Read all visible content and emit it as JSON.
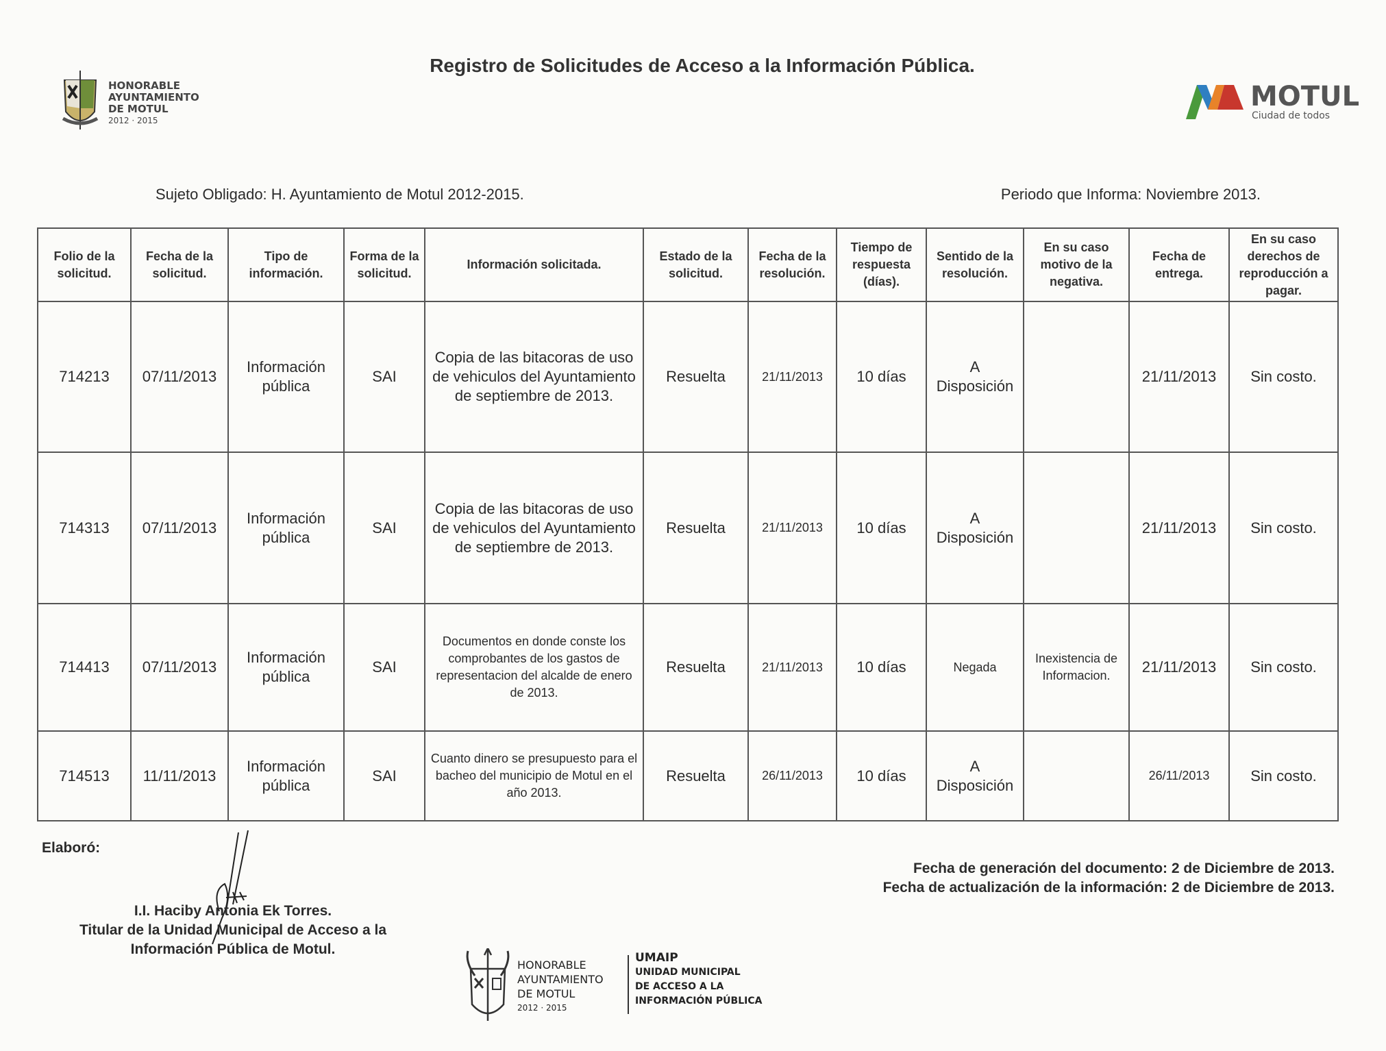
{
  "header": {
    "title": "Registro de Solicitudes de Acceso a la Información Pública.",
    "left_logo": {
      "lines": [
        "HONORABLE",
        "AYUNTAMIENTO",
        "DE MOTUL"
      ],
      "years": "2012 · 2015"
    },
    "right_logo": {
      "name": "MOTUL",
      "tagline": "Ciudad de todos",
      "colors": [
        "#4a9a3c",
        "#2f7fc1",
        "#e8832a",
        "#c8372d"
      ]
    }
  },
  "meta": {
    "subject": "Sujeto Obligado: H. Ayuntamiento de Motul 2012-2015.",
    "period": "Periodo que Informa: Noviembre 2013."
  },
  "table": {
    "columns": [
      "Folio de la solicitud.",
      "Fecha de la solicitud.",
      "Tipo de información.",
      "Forma de la solicitud.",
      "Información solicitada.",
      "Estado de la solicitud.",
      "Fecha de la resolución.",
      "Tiempo de respuesta (días).",
      "Sentido de la resolución.",
      "En su caso motivo de la negativa.",
      "Fecha de entrega.",
      "En su caso derechos de reproducción a pagar."
    ],
    "rows": [
      [
        "714213",
        "07/11/2013",
        "Información pública",
        "SAI",
        "Copia de las bitacoras de uso de vehiculos del Ayuntamiento de septiembre de 2013.",
        "Resuelta",
        "21/11/2013",
        "10 días",
        "A Disposición",
        "",
        "21/11/2013",
        "Sin costo."
      ],
      [
        "714313",
        "07/11/2013",
        "Información pública",
        "SAI",
        "Copia de las bitacoras de uso de vehiculos del Ayuntamiento de septiembre de 2013.",
        "Resuelta",
        "21/11/2013",
        "10 días",
        "A Disposición",
        "",
        "21/11/2013",
        "Sin costo."
      ],
      [
        "714413",
        "07/11/2013",
        "Información pública",
        "SAI",
        "Documentos en donde conste los comprobantes de los gastos de representacion del alcalde de enero de 2013.",
        "Resuelta",
        "21/11/2013",
        "10 días",
        "Negada",
        "Inexistencia de Informacion.",
        "21/11/2013",
        "Sin costo."
      ],
      [
        "714513",
        "11/11/2013",
        "Información pública",
        "SAI",
        "Cuanto dinero se presupuesto para el bacheo del municipio de Motul en el año 2013.",
        "Resuelta",
        "26/11/2013",
        "10 días",
        "A Disposición",
        "",
        "26/11/2013",
        "Sin costo."
      ]
    ]
  },
  "footer": {
    "elaboro": "Elaboró:",
    "signer_name": "I.I. Haciby Antonia Ek Torres.",
    "signer_title_1": "Titular de la Unidad Municipal de Acceso a la",
    "signer_title_2": "Información Pública de Motul.",
    "generation_date": "Fecha de generación del documento: 2 de Diciembre de 2013.",
    "update_date": "Fecha de actualización de la información: 2 de Diciembre de 2013.",
    "bottom_logo": {
      "left_lines": [
        "HONORABLE",
        "AYUNTAMIENTO",
        "DE MOTUL"
      ],
      "years": "2012 · 2015",
      "right_lines": [
        "UMAIP",
        "UNIDAD MUNICIPAL",
        "DE ACCESO A LA",
        "INFORMACIÓN PÚBLICA"
      ]
    }
  }
}
